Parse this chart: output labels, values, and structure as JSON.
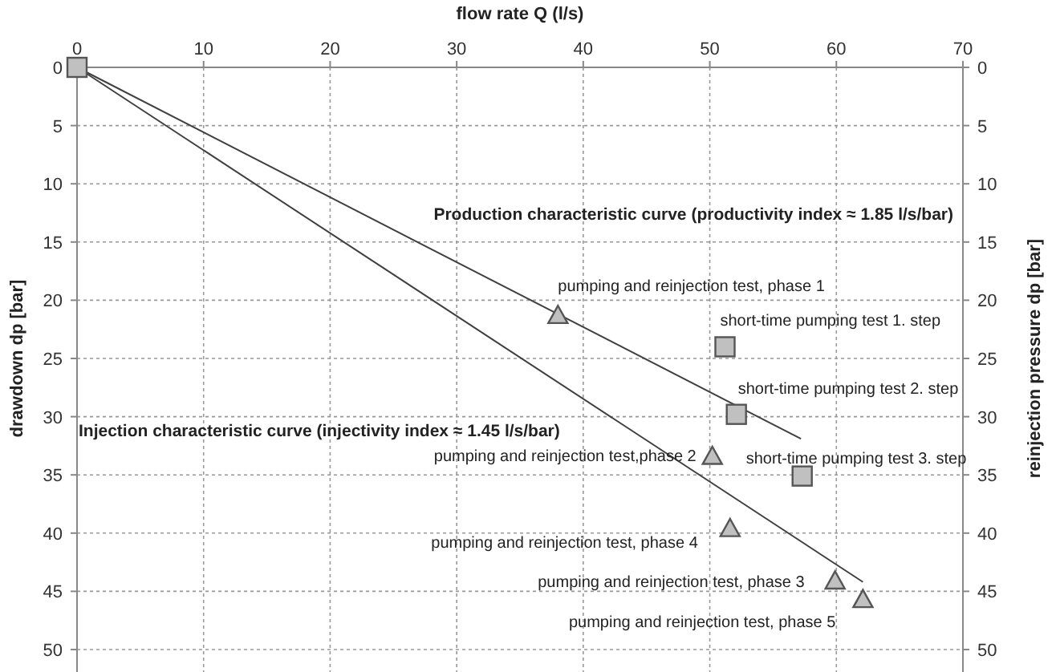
{
  "chart_data": {
    "type": "scatter",
    "xlabel": "flow rate Q (l/s)",
    "ylabel": "drawdown  dp  [bar]",
    "y2label": "reinjection pressure  dp [bar]",
    "xlim": [
      0,
      70
    ],
    "xticks": [
      0,
      10,
      20,
      30,
      40,
      50,
      60,
      70
    ],
    "ylim": [
      50,
      0
    ],
    "yticks": [
      0,
      5,
      10,
      15,
      20,
      25,
      30,
      35,
      40,
      45,
      50
    ],
    "y2lim": [
      50,
      0
    ],
    "y2ticks": [
      0,
      5,
      10,
      15,
      20,
      25,
      30,
      35,
      40,
      45,
      50
    ],
    "grid": true,
    "series": [
      {
        "type": "line",
        "name": "Production characteristic curve (productivity index  ≈ 1.85 l/s/bar)",
        "color": "#404040",
        "x": [
          0,
          57.2
        ],
        "values": [
          0,
          31.9
        ],
        "marker": "none",
        "line_style": "solid"
      },
      {
        "type": "line",
        "name": "Injection characteristic curve (injectivity index  ≈ 1.45 l/s/bar)",
        "color": "#404040",
        "x": [
          0,
          62.1
        ],
        "values": [
          0,
          44.2
        ],
        "marker": "none",
        "line_style": "solid"
      },
      {
        "color": "#c0c0c0",
        "x": [
          0,
          51.2,
          52.1,
          57.3
        ],
        "values": [
          0,
          24,
          29.8,
          35.1
        ],
        "marker": "square"
      },
      {
        "color": "#c0c0c0",
        "x": [
          38,
          50.2,
          51.6,
          59.9,
          62.1
        ],
        "values": [
          21.3,
          33.4,
          39.6,
          44.1,
          45.7
        ],
        "marker": "triangle"
      }
    ],
    "annotations": [
      {
        "text": "pumping and reinjection test, phase 1",
        "x": 38,
        "y": 21.3
      },
      {
        "text": "short-time pumping test 1. step",
        "x": 51.2,
        "y": 24
      },
      {
        "text": "short-time pumping test 2. step",
        "x": 52.1,
        "y": 29.8
      },
      {
        "text": "pumping and reinjection test,phase 2",
        "x": 50.2,
        "y": 33.4
      },
      {
        "text": "short-time pumping test 3. step",
        "x": 57.3,
        "y": 35.1
      },
      {
        "text": "pumping and reinjection test, phase 4",
        "x": 51.6,
        "y": 39.6
      },
      {
        "text": "pumping and reinjection test, phase 3",
        "x": 59.9,
        "y": 44.1
      },
      {
        "text": "pumping and  reinjection test, phase 5",
        "x": 62.1,
        "y": 45.7
      }
    ]
  }
}
